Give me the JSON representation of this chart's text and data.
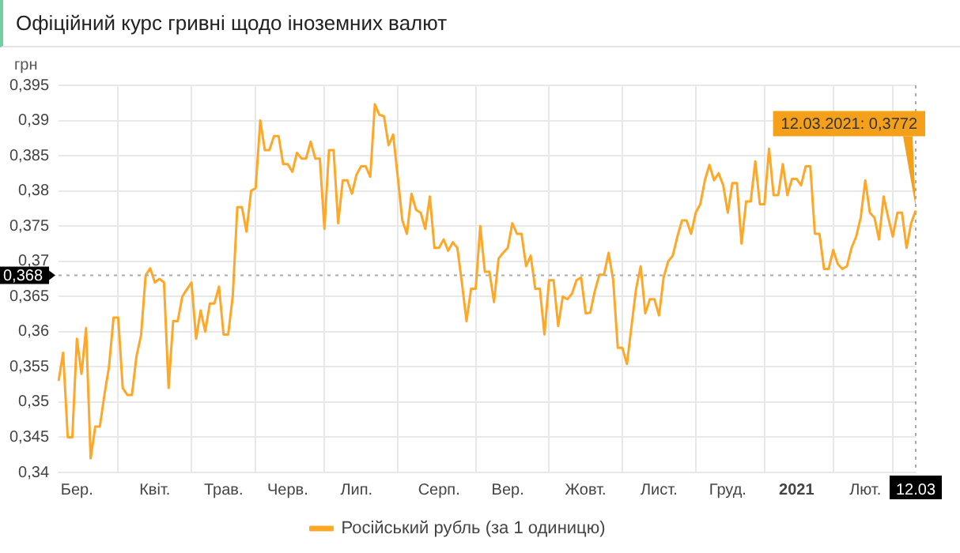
{
  "chart_data": {
    "type": "line",
    "title": "Офіційний курс гривні щодо іноземних валют",
    "ylabel": "грн",
    "categories": [
      null,
      null,
      null,
      null,
      "Бер.",
      null,
      null,
      null,
      null,
      null,
      null,
      null,
      null,
      null,
      null,
      null,
      null,
      null,
      null,
      null,
      null,
      "Квіт.",
      null,
      null,
      null,
      null,
      null,
      null,
      null,
      null,
      null,
      null,
      null,
      null,
      null,
      null,
      "Трав.",
      null,
      null,
      null,
      null,
      null,
      null,
      null,
      null,
      null,
      null,
      null,
      null,
      null,
      "Черв.",
      null,
      null,
      null,
      null,
      null,
      null,
      null,
      null,
      null,
      null,
      null,
      null,
      null,
      null,
      "Лип.",
      null,
      null,
      null,
      null,
      null,
      null,
      null,
      null,
      null,
      null,
      null,
      null,
      null,
      null,
      null,
      null,
      null,
      "Серп.",
      null,
      null,
      null,
      null,
      null,
      null,
      null,
      null,
      null,
      null,
      null,
      null,
      null,
      null,
      "Вер.",
      null,
      null,
      null,
      null,
      null,
      null,
      null,
      null,
      null,
      null,
      null,
      null,
      null,
      null,
      null,
      null,
      "Жовт.",
      null,
      null,
      null,
      null,
      null,
      null,
      null,
      null,
      null,
      null,
      null,
      null,
      null,
      null,
      null,
      "Лист.",
      null,
      null,
      null,
      null,
      null,
      null,
      null,
      null,
      null,
      null,
      null,
      null,
      null,
      null,
      "Груд.",
      null,
      null,
      null,
      null,
      null,
      null,
      null,
      null,
      null,
      null,
      null,
      null,
      null,
      null,
      "2021",
      null,
      null,
      null,
      null,
      null,
      null,
      null,
      null,
      null,
      null,
      null,
      null,
      null,
      null,
      "Лют.",
      null,
      null,
      null,
      null,
      null,
      null,
      null,
      null,
      null,
      null,
      "12.03"
    ],
    "series": [
      {
        "name": "Російський рубль (за 1 одиницю)",
        "color": "#ffa726",
        "values": [
          0.353,
          0.357,
          0.345,
          0.345,
          0.359,
          0.354,
          0.3605,
          0.342,
          0.3465,
          0.3465,
          0.351,
          0.355,
          0.362,
          0.362,
          0.352,
          0.351,
          0.351,
          0.3565,
          0.3595,
          0.368,
          0.369,
          0.367,
          0.3675,
          0.367,
          0.352,
          0.3615,
          0.3615,
          0.365,
          0.366,
          0.367,
          0.359,
          0.363,
          0.36,
          0.364,
          0.364,
          0.3664,
          0.3596,
          0.3596,
          0.365,
          0.3777,
          0.3777,
          0.3742,
          0.38,
          0.3804,
          0.39,
          0.3858,
          0.3858,
          0.3878,
          0.3878,
          0.3838,
          0.3838,
          0.3827,
          0.3854,
          0.3846,
          0.3846,
          0.387,
          0.3846,
          0.3846,
          0.3746,
          0.3858,
          0.3858,
          0.3754,
          0.3815,
          0.3815,
          0.3796,
          0.3823,
          0.3835,
          0.3835,
          0.382,
          0.3923,
          0.3908,
          0.3906,
          0.3865,
          0.388,
          0.382,
          0.3758,
          0.3739,
          0.3796,
          0.3773,
          0.3769,
          0.3746,
          0.3792,
          0.3719,
          0.3719,
          0.3731,
          0.3715,
          0.3727,
          0.3719,
          0.3669,
          0.3615,
          0.3661,
          0.3661,
          0.375,
          0.3685,
          0.3685,
          0.3642,
          0.3704,
          0.3712,
          0.3719,
          0.3754,
          0.3739,
          0.3739,
          0.3693,
          0.3708,
          0.3661,
          0.3661,
          0.3596,
          0.3673,
          0.3673,
          0.3608,
          0.365,
          0.3646,
          0.3654,
          0.3673,
          0.3677,
          0.3626,
          0.3627,
          0.3658,
          0.3681,
          0.3681,
          0.3712,
          0.3673,
          0.3577,
          0.3577,
          0.3554,
          0.3608,
          0.3661,
          0.3693,
          0.3626,
          0.3646,
          0.3646,
          0.3623,
          0.3677,
          0.37,
          0.3708,
          0.3735,
          0.3758,
          0.3758,
          0.3739,
          0.3769,
          0.3781,
          0.3815,
          0.3837,
          0.3815,
          0.3825,
          0.3808,
          0.3769,
          0.3811,
          0.3811,
          0.3725,
          0.3785,
          0.3785,
          0.3842,
          0.3781,
          0.3781,
          0.386,
          0.3794,
          0.3794,
          0.3838,
          0.3794,
          0.3817,
          0.3817,
          0.3808,
          0.3835,
          0.3835,
          0.3739,
          0.3739,
          0.3689,
          0.3689,
          0.3716,
          0.3696,
          0.3689,
          0.3693,
          0.3719,
          0.3735,
          0.3762,
          0.3815,
          0.3769,
          0.3762,
          0.3731,
          0.3792,
          0.3762,
          0.3735,
          0.3769,
          0.3769,
          0.3719,
          0.3754,
          0.3772
        ]
      }
    ],
    "ylim": [
      0.34,
      0.395
    ],
    "yticks": [
      {
        "value": 0.34,
        "label": "0,34"
      },
      {
        "value": 0.345,
        "label": "0,345"
      },
      {
        "value": 0.35,
        "label": "0,35"
      },
      {
        "value": 0.355,
        "label": "0,355"
      },
      {
        "value": 0.36,
        "label": "0,36"
      },
      {
        "value": 0.365,
        "label": "0,365"
      },
      {
        "value": 0.37,
        "label": "0,37"
      },
      {
        "value": 0.375,
        "label": "0,375"
      },
      {
        "value": 0.38,
        "label": "0,38"
      },
      {
        "value": 0.385,
        "label": "0,385"
      },
      {
        "value": 0.39,
        "label": "0,39"
      },
      {
        "value": 0.395,
        "label": "0,395"
      }
    ],
    "ref_lines": [
      {
        "axis": "y",
        "value": 0.368,
        "label": "0,368",
        "color": "#aaaaaa",
        "line_style": "dotted"
      }
    ],
    "annotations": [
      {
        "text": "12.03.2021: 0,3772",
        "x": "12.03",
        "y": 0.3772
      }
    ],
    "grid": true,
    "legend": "bottom",
    "marker": "none",
    "line_style": "solid"
  }
}
